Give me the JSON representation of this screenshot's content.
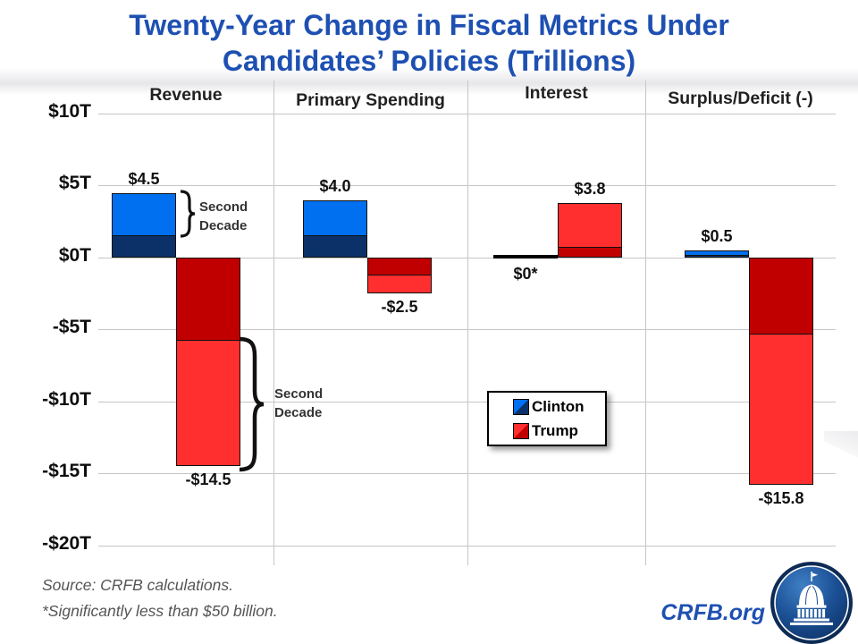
{
  "title": {
    "line1": "Twenty-Year Change in Fiscal Metrics Under",
    "line2": "Candidates’ Policies (Trillions)"
  },
  "y_axis_labels": [
    "$10T",
    "$5T",
    "$0T",
    "-$5T",
    "-$10T",
    "-$15T",
    "-$20T"
  ],
  "column_headers": [
    "Revenue",
    "Primary Spending",
    "Interest",
    "Surplus/Deficit (-)"
  ],
  "annotations": {
    "clinton_revenue_bracket": "Second Decade",
    "trump_revenue_bracket": "Second Decade"
  },
  "legend": {
    "items": [
      {
        "label": "Clinton"
      },
      {
        "label": "Trump"
      }
    ]
  },
  "footer": {
    "source": "Source: CRFB calculations.",
    "footnote": "*Significantly less than $50 billion.",
    "website": "CRFB.org"
  },
  "colors": {
    "clinton_light": "#0170F0",
    "clinton_dark": "#0B3168",
    "trump_light": "#FF2F2F",
    "trump_dark": "#C00000",
    "title_blue": "#1E50B2",
    "gridline": "#C6C6C6"
  },
  "chart_data": {
    "type": "bar",
    "title": "Twenty-Year Change in Fiscal Metrics Under Candidates’ Policies (Trillions)",
    "categories": [
      "Revenue",
      "Primary Spending",
      "Interest",
      "Surplus/Deficit (-)"
    ],
    "unit": "trillions of dollars",
    "y_axis": {
      "ticks": [
        10,
        5,
        0,
        -5,
        -10,
        -15,
        -20
      ],
      "tick_labels": [
        "$10T",
        "$5T",
        "$0T",
        "-$5T",
        "-$10T",
        "-$15T",
        "-$20T"
      ],
      "range": [
        -20,
        10
      ],
      "grid": true
    },
    "legend_position": "center",
    "series": [
      {
        "name": "Clinton",
        "totals": [
          4.5,
          4.0,
          0,
          0.5
        ],
        "total_labels": [
          "$4.5",
          "$4.0",
          "$0*",
          "$0.5"
        ],
        "first_decade": [
          1.5,
          1.5,
          0,
          0.1
        ],
        "second_decade": [
          3.0,
          2.5,
          0,
          0.4
        ]
      },
      {
        "name": "Trump",
        "totals": [
          -14.5,
          -2.5,
          3.8,
          -15.8
        ],
        "total_labels": [
          "-$14.5",
          "-$2.5",
          "$3.8",
          "-$15.8"
        ],
        "first_decade": [
          -5.7,
          -1.2,
          0.7,
          -5.3
        ],
        "second_decade": [
          -8.8,
          -1.3,
          3.1,
          -10.5
        ]
      }
    ],
    "notes": "Bars stacked by decade: dark shade = first decade (nearest zero), light shade = second decade. Clinton Interest shown as a flat $0* line."
  }
}
